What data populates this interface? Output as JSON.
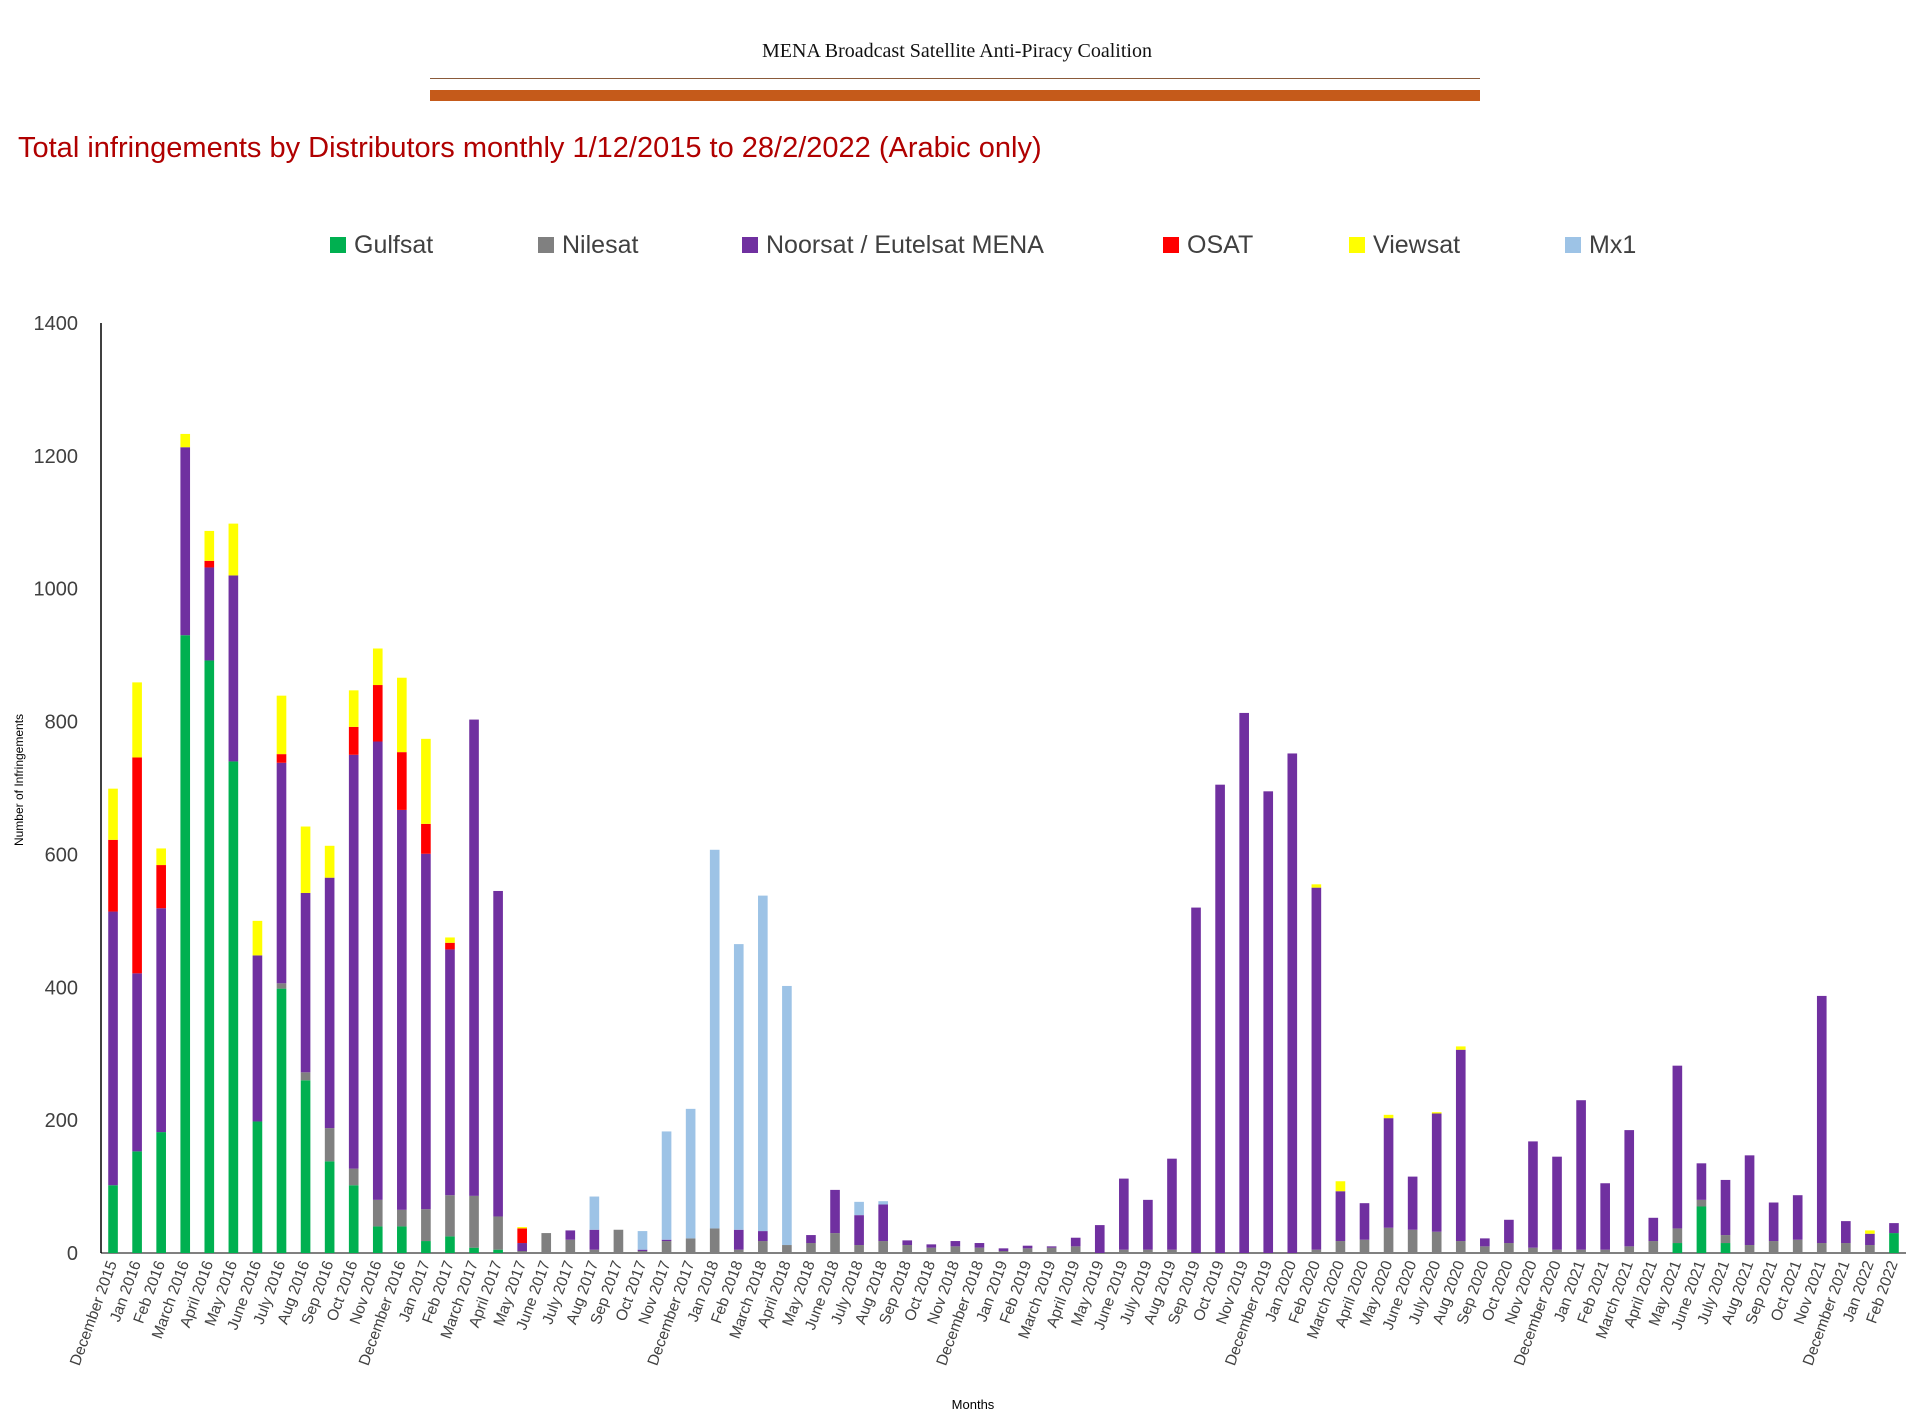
{
  "header": {
    "organization": "MENA Broadcast Satellite  Anti-Piracy Coalition"
  },
  "chart_data": {
    "type": "bar",
    "stacked": true,
    "title": "Total infringements by Distributors monthly 1/12/2015 to 28/2/2022 (Arabic only)",
    "xlabel": "Months",
    "ylabel": "Number of Infringements",
    "ylim": [
      0,
      1400
    ],
    "yticks": [
      0,
      200,
      400,
      600,
      800,
      1000,
      1200,
      1400
    ],
    "grid": false,
    "legend_position": "top",
    "categories": [
      "December 2015",
      "Jan 2016",
      "Feb 2016",
      "March 2016",
      "April 2016",
      "May 2016",
      "June 2016",
      "July 2016",
      "Aug 2016",
      "Sep 2016",
      "Oct 2016",
      "Nov 2016",
      "December 2016",
      "Jan 2017",
      "Feb 2017",
      "March 2017",
      "April 2017",
      "May 2017",
      "June 2017",
      "July 2017",
      "Aug 2017",
      "Sep 2017",
      "Oct 2017",
      "Nov 2017",
      "December 2017",
      "Jan 2018",
      "Feb 2018",
      "March 2018",
      "April 2018",
      "May 2018",
      "June 2018",
      "July 2018",
      "Aug 2018",
      "Sep 2018",
      "Oct 2018",
      "Nov 2018",
      "December 2018",
      "Jan 2019",
      "Feb 2019",
      "March 2019",
      "April 2019",
      "May 2019",
      "June 2019",
      "July 2019",
      "Aug 2019",
      "Sep 2019",
      "Oct 2019",
      "Nov 2019",
      "December 2019",
      "Jan 2020",
      "Feb 2020",
      "March 2020",
      "April 2020",
      "May 2020",
      "June 2020",
      "July 2020",
      "Aug 2020",
      "Sep 2020",
      "Oct 2020",
      "Nov 2020",
      "December 2020",
      "Jan 2021",
      "Feb 2021",
      "March 2021",
      "April 2021",
      "May 2021",
      "June 2021",
      "July 2021",
      "Aug 2021",
      "Sep 2021",
      "Oct 2021",
      "Nov 2021",
      "December 2021",
      "Jan 2022",
      "Feb 2022"
    ],
    "series": [
      {
        "name": "Gulfsat",
        "color": "#00b050",
        "values": [
          102,
          153,
          182,
          930,
          892,
          740,
          198,
          398,
          260,
          138,
          102,
          40,
          40,
          18,
          25,
          8,
          5,
          0,
          0,
          0,
          0,
          0,
          0,
          0,
          0,
          0,
          0,
          0,
          0,
          0,
          0,
          0,
          0,
          0,
          0,
          0,
          0,
          0,
          0,
          0,
          0,
          0,
          0,
          0,
          0,
          0,
          0,
          0,
          0,
          0,
          0,
          0,
          0,
          0,
          0,
          0,
          0,
          0,
          0,
          0,
          0,
          0,
          0,
          0,
          0,
          15,
          70,
          15,
          0,
          0,
          0,
          0,
          0,
          0,
          30
        ]
      },
      {
        "name": "Nilesat",
        "color": "#808080",
        "values": [
          0,
          0,
          0,
          0,
          0,
          0,
          0,
          8,
          12,
          50,
          25,
          40,
          25,
          48,
          62,
          78,
          50,
          3,
          30,
          20,
          5,
          35,
          3,
          18,
          22,
          37,
          5,
          18,
          12,
          15,
          30,
          12,
          18,
          12,
          8,
          10,
          8,
          3,
          7,
          8,
          10,
          0,
          5,
          5,
          5,
          0,
          0,
          0,
          0,
          0,
          5,
          18,
          20,
          38,
          35,
          32,
          18,
          10,
          15,
          8,
          5,
          5,
          5,
          10,
          18,
          22,
          10,
          12,
          12,
          18,
          20,
          15,
          15,
          12,
          0
        ]
      },
      {
        "name": "Noorsat / Eutelsat MENA",
        "color": "#7030a0",
        "values": [
          412,
          268,
          337,
          283,
          140,
          280,
          250,
          332,
          270,
          377,
          623,
          690,
          602,
          535,
          370,
          717,
          490,
          12,
          0,
          14,
          30,
          0,
          2,
          2,
          0,
          0,
          30,
          15,
          0,
          12,
          65,
          45,
          55,
          7,
          5,
          8,
          7,
          4,
          4,
          2,
          13,
          42,
          107,
          75,
          137,
          520,
          705,
          813,
          695,
          752,
          545,
          75,
          55,
          165,
          80,
          178,
          288,
          12,
          35,
          160,
          140,
          225,
          100,
          175,
          35,
          245,
          55,
          83,
          135,
          58,
          67,
          372,
          33,
          17,
          15
        ]
      },
      {
        "name": "OSAT",
        "color": "#ff0000",
        "values": [
          108,
          325,
          65,
          0,
          10,
          0,
          0,
          13,
          0,
          0,
          42,
          85,
          87,
          45,
          10,
          0,
          0,
          22,
          0,
          0,
          0,
          0,
          0,
          0,
          0,
          0,
          0,
          0,
          0,
          0,
          0,
          0,
          0,
          0,
          0,
          0,
          0,
          0,
          0,
          0,
          0,
          0,
          0,
          0,
          0,
          0,
          0,
          0,
          0,
          0,
          0,
          0,
          0,
          0,
          0,
          0,
          0,
          0,
          0,
          0,
          0,
          0,
          0,
          0,
          0,
          0,
          0,
          0,
          0,
          0,
          0,
          0,
          0,
          0,
          0
        ]
      },
      {
        "name": "Viewsat",
        "color": "#ffff00",
        "values": [
          77,
          113,
          25,
          20,
          45,
          78,
          52,
          88,
          100,
          48,
          55,
          55,
          112,
          128,
          8,
          0,
          0,
          2,
          0,
          0,
          0,
          0,
          0,
          0,
          0,
          0,
          0,
          0,
          0,
          0,
          0,
          0,
          0,
          0,
          0,
          0,
          0,
          0,
          0,
          0,
          0,
          0,
          0,
          0,
          0,
          0,
          0,
          0,
          0,
          0,
          5,
          15,
          0,
          5,
          0,
          2,
          5,
          0,
          0,
          0,
          0,
          0,
          0,
          0,
          0,
          0,
          0,
          0,
          0,
          0,
          0,
          0,
          0,
          5,
          0
        ]
      },
      {
        "name": "Mx1",
        "color": "#9dc3e6",
        "values": [
          0,
          0,
          0,
          0,
          0,
          0,
          0,
          0,
          0,
          0,
          0,
          0,
          0,
          0,
          0,
          0,
          0,
          0,
          0,
          0,
          50,
          0,
          28,
          163,
          195,
          570,
          430,
          505,
          390,
          0,
          0,
          20,
          5,
          0,
          0,
          0,
          0,
          0,
          0,
          0,
          0,
          0,
          0,
          0,
          0,
          0,
          0,
          0,
          0,
          0,
          0,
          0,
          0,
          0,
          0,
          0,
          0,
          0,
          0,
          0,
          0,
          0,
          0,
          0,
          0,
          0,
          0,
          0,
          0,
          0,
          0,
          0,
          0,
          0,
          0
        ]
      }
    ]
  }
}
